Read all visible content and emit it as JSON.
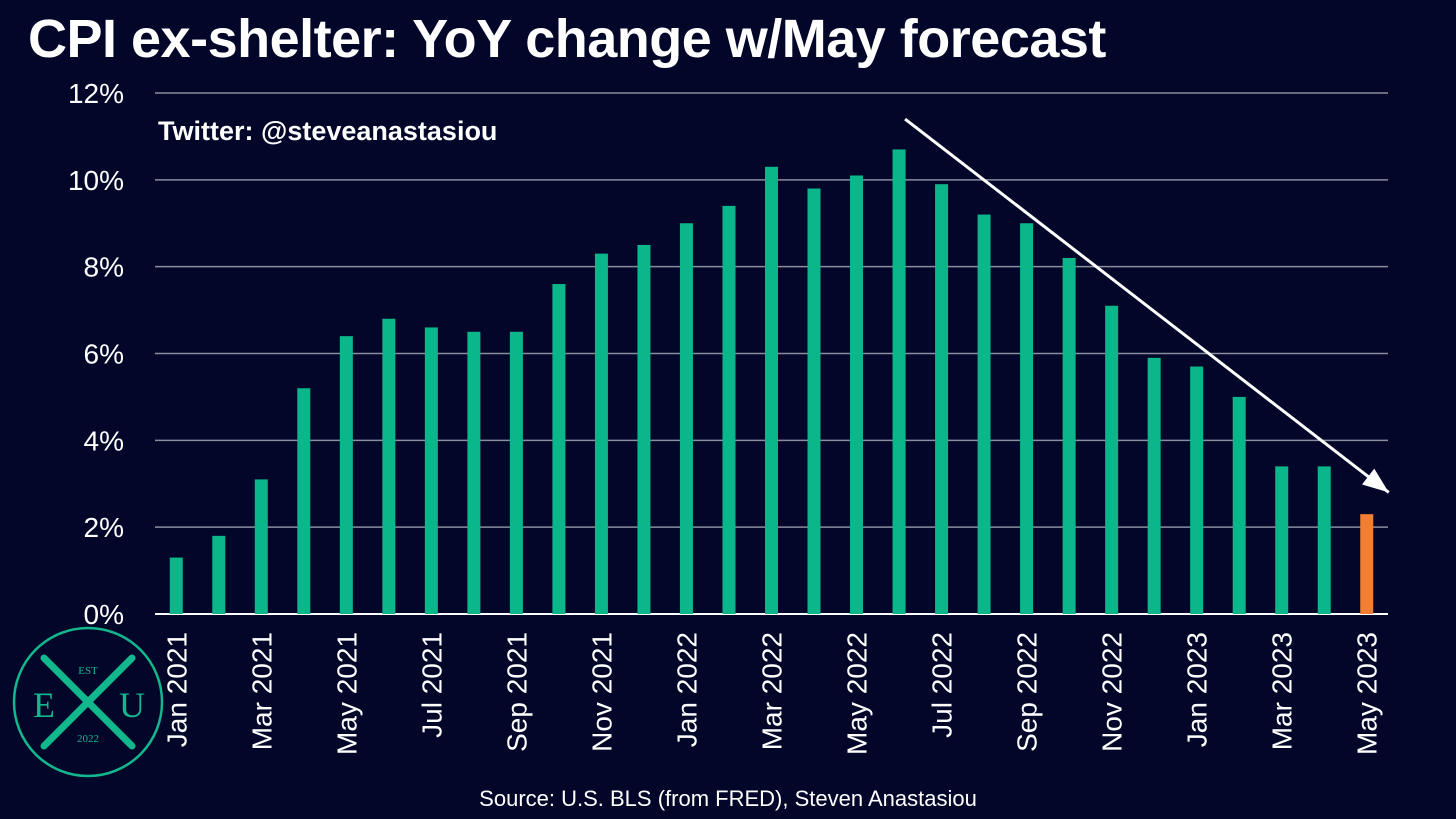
{
  "title": "CPI ex-shelter: YoY change w/May forecast",
  "watermark": "Twitter: @steveanastasiou",
  "source": "Source: U.S. BLS (from FRED), Steven Anastasiou",
  "logo": {
    "top": "EST",
    "left": "E",
    "center": "X",
    "right": "U",
    "bottom": "2022"
  },
  "colors": {
    "background": "#02072a",
    "bar": "#0bb68a",
    "forecast_bar": "#f07e33",
    "grid": "#8a8d9e",
    "logo": "#12b78d"
  },
  "chart_data": {
    "type": "bar",
    "categories": [
      "Jan 2021",
      "Feb 2021",
      "Mar 2021",
      "Apr 2021",
      "May 2021",
      "Jun 2021",
      "Jul 2021",
      "Aug 2021",
      "Sep 2021",
      "Oct 2021",
      "Nov 2021",
      "Dec 2021",
      "Jan 2022",
      "Feb 2022",
      "Mar 2022",
      "Apr 2022",
      "May 2022",
      "Jun 2022",
      "Jul 2022",
      "Aug 2022",
      "Sep 2022",
      "Oct 2022",
      "Nov 2022",
      "Dec 2022",
      "Jan 2023",
      "Feb 2023",
      "Mar 2023",
      "Apr 2023",
      "May 2023"
    ],
    "values": [
      1.3,
      1.8,
      3.1,
      5.2,
      6.4,
      6.8,
      6.6,
      6.5,
      6.5,
      7.6,
      8.3,
      8.5,
      9.0,
      9.4,
      10.3,
      9.8,
      10.1,
      10.7,
      9.9,
      9.2,
      9.0,
      8.2,
      7.1,
      5.9,
      5.7,
      5.0,
      3.4,
      3.4,
      2.3
    ],
    "forecast_index": 28,
    "x_tick_labels": [
      "Jan 2021",
      "",
      "Mar 2021",
      "",
      "May 2021",
      "",
      "Jul 2021",
      "",
      "Sep 2021",
      "",
      "Nov 2021",
      "",
      "Jan 2022",
      "",
      "Mar 2022",
      "",
      "May 2022",
      "",
      "Jul 2022",
      "",
      "Sep 2022",
      "",
      "Nov 2022",
      "",
      "Jan 2023",
      "",
      "Mar 2023",
      "",
      "May 2023"
    ],
    "y_ticks": [
      0,
      2,
      4,
      6,
      8,
      10,
      12
    ],
    "y_tick_labels": [
      "0%",
      "2%",
      "4%",
      "6%",
      "8%",
      "10%",
      "12%"
    ],
    "ylim": [
      0,
      12
    ],
    "grid": true,
    "trend_arrow": {
      "from": {
        "category": "Jun 2022",
        "value": 11.4
      },
      "to": {
        "category": "May 2023",
        "value": 2.8
      }
    }
  }
}
